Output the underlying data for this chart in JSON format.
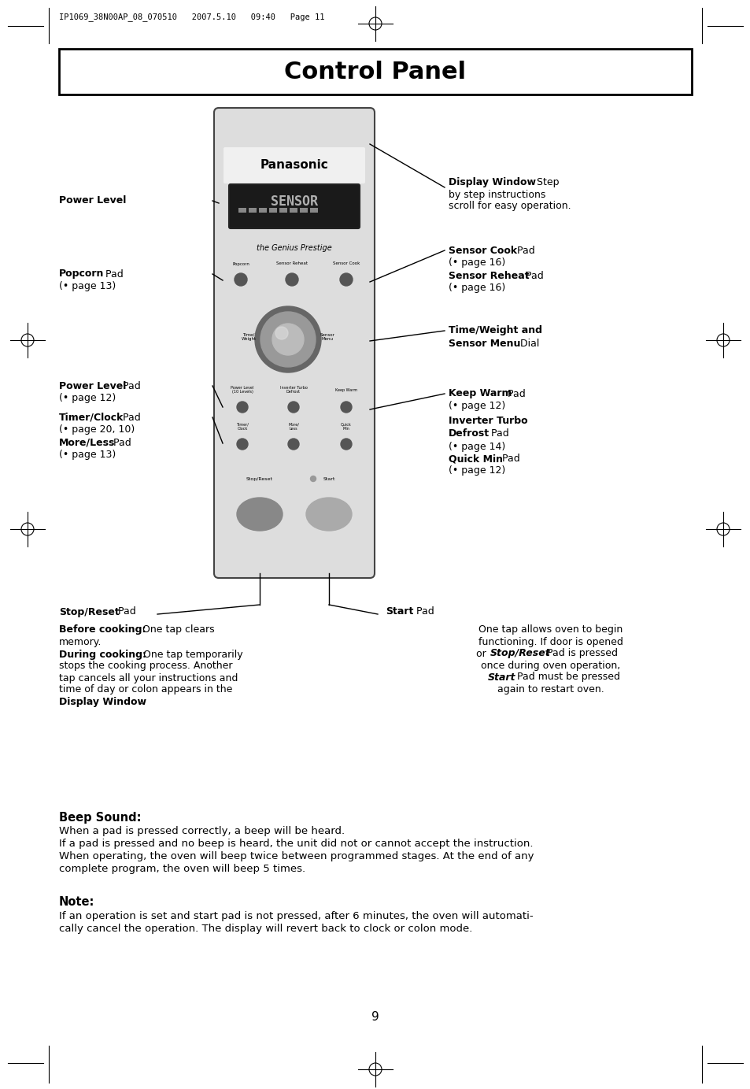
{
  "page_header": "IP1069_38N00AP_08_070510   2007.5.10   09:40   Page 11",
  "title": "Control Panel",
  "bg_color": "#ffffff",
  "beep_sound_heading": "Beep Sound:",
  "beep_sound_lines": [
    "When a pad is pressed correctly, a beep will be heard.",
    "If a pad is pressed and no beep is heard, the unit did not or cannot accept the instruction.",
    "When operating, the oven will beep twice between programmed stages. At the end of any",
    "complete program, the oven will beep 5 times."
  ],
  "note_heading": "Note:",
  "note_lines": [
    "If an operation is set and start pad is not pressed, after 6 minutes, the oven will automati-",
    "cally cancel the operation. The display will revert back to clock or colon mode."
  ],
  "page_number": "9"
}
